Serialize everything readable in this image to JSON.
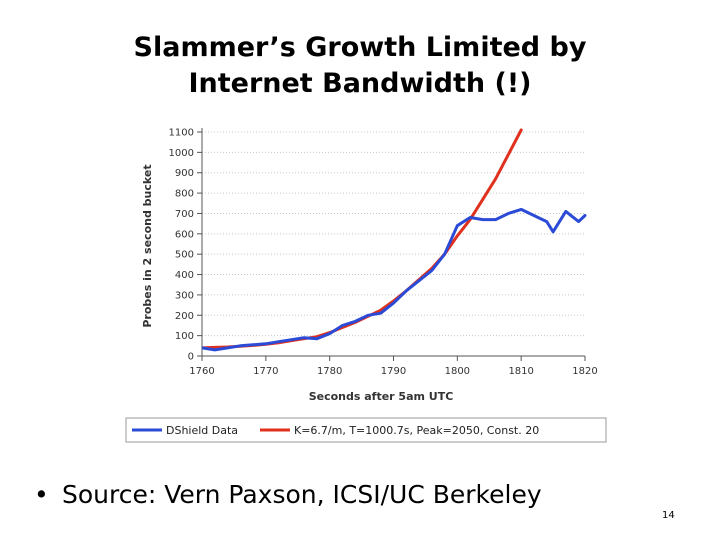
{
  "slide": {
    "title_line1": "Slammer’s Growth Limited by",
    "title_line2": "Internet Bandwidth (!)",
    "bullet_marker": "•",
    "bullet": "Source: Vern Paxson, ICSI/UC Berkeley",
    "page_number": "14"
  },
  "colors": {
    "dshield": "#2b4bd6",
    "fit": "#e0301e",
    "grid": "#c8c8c8",
    "axis": "#555555"
  },
  "chart_data": {
    "type": "line",
    "title": "",
    "xlabel": "Seconds after 5am UTC",
    "ylabel": "Probes in 2 second bucket",
    "xlim": [
      1760,
      1820
    ],
    "ylim": [
      0,
      1100
    ],
    "xticks": [
      1760,
      1770,
      1780,
      1790,
      1800,
      1810,
      1820
    ],
    "yticks": [
      0,
      100,
      200,
      300,
      400,
      500,
      600,
      700,
      800,
      900,
      1000,
      1100
    ],
    "grid": "horizontal",
    "legend_position": "bottom",
    "series": [
      {
        "name": "DShield Data",
        "color": "#2b4bd6",
        "x": [
          1760,
          1762,
          1764,
          1766,
          1768,
          1770,
          1772,
          1774,
          1776,
          1778,
          1780,
          1782,
          1784,
          1786,
          1788,
          1790,
          1792,
          1794,
          1796,
          1798,
          1800,
          1802,
          1804,
          1806,
          1808,
          1810,
          1812,
          1814,
          1815,
          1817,
          1819,
          1820
        ],
        "values": [
          40,
          30,
          40,
          50,
          55,
          60,
          70,
          80,
          90,
          85,
          110,
          150,
          170,
          200,
          210,
          260,
          320,
          370,
          420,
          500,
          640,
          680,
          670,
          670,
          700,
          720,
          690,
          660,
          610,
          710,
          660,
          690
        ]
      },
      {
        "name": "K=6.7/m, T=1000.7s, Peak=2050, Const. 20",
        "color": "#e0301e",
        "x": [
          1760,
          1762,
          1764,
          1766,
          1768,
          1770,
          1772,
          1774,
          1776,
          1778,
          1780,
          1782,
          1784,
          1786,
          1788,
          1790,
          1792,
          1794,
          1796,
          1798,
          1800,
          1802,
          1804,
          1806,
          1808,
          1810
        ],
        "values": [
          40,
          42,
          44,
          48,
          52,
          58,
          65,
          75,
          85,
          95,
          115,
          140,
          165,
          195,
          225,
          270,
          320,
          375,
          430,
          500,
          590,
          670,
          770,
          870,
          990,
          1110
        ]
      }
    ]
  }
}
